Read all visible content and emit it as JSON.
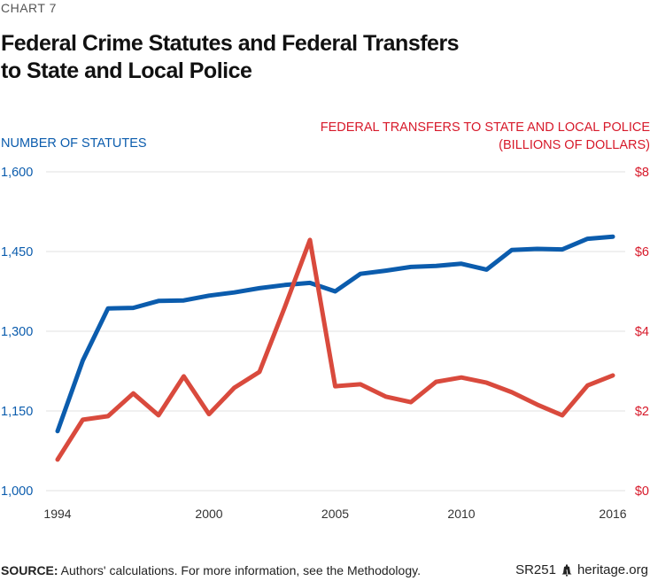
{
  "header": {
    "chart_number": "CHART 7",
    "title_line1": "Federal Crime Statutes and Federal Transfers",
    "title_line2": "to State and Local Police"
  },
  "footer": {
    "source_label": "SOURCE:",
    "source_text": " Authors' calculations. For more information, see the Methodology.",
    "report_id": "SR251",
    "site": "heritage.org",
    "logo_icon": "liberty-bell-icon"
  },
  "colors": {
    "statutes": "#0b5cad",
    "transfers": "#d94a3d",
    "left_axis_text": "#0b5cad",
    "right_axis_text": "#d7192a",
    "grid": "#e6e6e6"
  },
  "chart_data": {
    "type": "line",
    "title": "Federal Crime Statutes and Federal Transfers to State and Local Police",
    "x": [
      1994,
      1995,
      1996,
      1997,
      1998,
      1999,
      2000,
      2001,
      2002,
      2003,
      2004,
      2005,
      2006,
      2007,
      2008,
      2009,
      2010,
      2011,
      2012,
      2013,
      2014,
      2015,
      2016
    ],
    "xlim": [
      1994,
      2016
    ],
    "x_ticks": [
      "1994",
      "2000",
      "2005",
      "2010",
      "2016"
    ],
    "x_tick_values": [
      1994,
      2000,
      2005,
      2010,
      2016
    ],
    "left_axis": {
      "label": "NUMBER OF STATUTES",
      "ylim": [
        1000,
        1600
      ],
      "ticks": [
        "1,600",
        "1,450",
        "1,300",
        "1,150",
        "1,000"
      ],
      "tick_values": [
        1600,
        1450,
        1300,
        1150,
        1000
      ]
    },
    "right_axis": {
      "label_line1": "FEDERAL TRANSFERS TO STATE AND LOCAL POLICE",
      "label_line2": "(BILLIONS OF DOLLARS)",
      "ylim": [
        0,
        8
      ],
      "ticks": [
        "$8",
        "$6",
        "$4",
        "$2",
        "$0"
      ],
      "tick_values": [
        8,
        6,
        4,
        2,
        0
      ]
    },
    "grid": true,
    "series": [
      {
        "name": "Number of Statutes",
        "axis": "left",
        "values": [
          1112,
          1245,
          1343,
          1344,
          1357,
          1358,
          1367,
          1373,
          1381,
          1387,
          1391,
          1375,
          1408,
          1414,
          1421,
          1423,
          1427,
          1416,
          1453,
          1455,
          1454,
          1474,
          1478
        ]
      },
      {
        "name": "Federal Transfers to State and Local Police (billions of dollars)",
        "axis": "right",
        "values": [
          0.78,
          1.78,
          1.87,
          2.44,
          1.89,
          2.87,
          1.92,
          2.58,
          2.98,
          4.6,
          6.29,
          2.62,
          2.67,
          2.36,
          2.22,
          2.73,
          2.84,
          2.71,
          2.47,
          2.16,
          1.89,
          2.64,
          2.89
        ]
      }
    ]
  }
}
